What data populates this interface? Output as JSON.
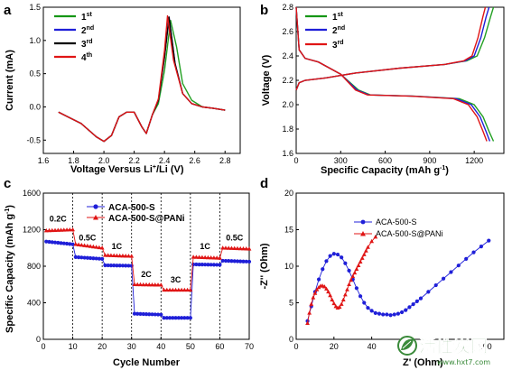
{
  "panels": [
    "a",
    "b",
    "c",
    "d"
  ],
  "colors": {
    "green": "#22a022",
    "blue": "#1f1fd8",
    "black": "#000000",
    "red": "#e01515",
    "legend_green": "#159615"
  },
  "watermark": {
    "brand": "活性炭网",
    "url": "www.hxt7.com",
    "icon": "leaf-logo-icon"
  },
  "chart_data": [
    {
      "panel": "a",
      "type": "line",
      "xlabel": "Voltage Versus Li⁺/Li (V)",
      "ylabel": "Current (mA)",
      "xlim": [
        1.6,
        2.9
      ],
      "ylim": [
        -0.7,
        1.5
      ],
      "xticks": [
        "1.6",
        "1.8",
        "2.0",
        "2.2",
        "2.4",
        "2.6",
        "2.8"
      ],
      "yticks": [
        "-0.5",
        "0.0",
        "0.5",
        "1.0",
        "1.5"
      ],
      "legend": [
        "1st",
        "2nd",
        "3rd",
        "4th"
      ],
      "legend_position": "top-left",
      "series": [
        {
          "name": "1st",
          "color": "#22a022",
          "peak_x": 2.45,
          "x": [
            1.7,
            1.85,
            1.95,
            2.0,
            2.05,
            2.1,
            2.15,
            2.2,
            2.25,
            2.28,
            2.32,
            2.36,
            2.4,
            2.44,
            2.48,
            2.52,
            2.58,
            2.65,
            2.72,
            2.8
          ],
          "y": [
            -0.08,
            -0.25,
            -0.45,
            -0.52,
            -0.43,
            -0.15,
            -0.08,
            -0.08,
            -0.3,
            -0.4,
            -0.12,
            0.05,
            0.55,
            1.3,
            0.9,
            0.35,
            0.1,
            0.0,
            -0.02,
            -0.05
          ]
        },
        {
          "name": "2nd",
          "color": "#1f1fd8",
          "peak_x": 2.43,
          "x": [
            1.7,
            1.85,
            1.95,
            2.0,
            2.05,
            2.1,
            2.15,
            2.2,
            2.25,
            2.28,
            2.32,
            2.36,
            2.4,
            2.43,
            2.47,
            2.52,
            2.58,
            2.65,
            2.72,
            2.8
          ],
          "y": [
            -0.08,
            -0.25,
            -0.45,
            -0.52,
            -0.43,
            -0.15,
            -0.08,
            -0.08,
            -0.3,
            -0.4,
            -0.12,
            0.1,
            0.75,
            1.35,
            0.65,
            0.2,
            0.05,
            0.0,
            -0.02,
            -0.05
          ]
        },
        {
          "name": "3rd",
          "color": "#000000",
          "peak_x": 2.43,
          "x": [
            1.7,
            1.85,
            1.95,
            2.0,
            2.05,
            2.1,
            2.15,
            2.2,
            2.25,
            2.28,
            2.32,
            2.36,
            2.4,
            2.43,
            2.47,
            2.52,
            2.58,
            2.65,
            2.72,
            2.8
          ],
          "y": [
            -0.08,
            -0.25,
            -0.45,
            -0.52,
            -0.43,
            -0.15,
            -0.08,
            -0.08,
            -0.3,
            -0.4,
            -0.12,
            0.1,
            0.75,
            1.35,
            0.65,
            0.2,
            0.05,
            0.0,
            -0.02,
            -0.05
          ]
        },
        {
          "name": "4th",
          "color": "#e01515",
          "peak_x": 2.42,
          "x": [
            1.7,
            1.85,
            1.95,
            2.0,
            2.05,
            2.1,
            2.15,
            2.2,
            2.25,
            2.28,
            2.32,
            2.36,
            2.4,
            2.42,
            2.46,
            2.52,
            2.58,
            2.65,
            2.72,
            2.8
          ],
          "y": [
            -0.08,
            -0.25,
            -0.45,
            -0.52,
            -0.43,
            -0.15,
            -0.08,
            -0.08,
            -0.3,
            -0.4,
            -0.12,
            0.12,
            0.85,
            1.37,
            0.7,
            0.2,
            0.05,
            0.0,
            -0.02,
            -0.05
          ]
        }
      ]
    },
    {
      "panel": "b",
      "type": "line",
      "xlabel": "Specific Capacity (mAh g⁻¹)",
      "ylabel": "Voltage (V)",
      "xlim": [
        0,
        1400
      ],
      "ylim": [
        1.6,
        2.8
      ],
      "xticks": [
        "0",
        "300",
        "600",
        "900",
        "1200"
      ],
      "yticks": [
        "1.6",
        "1.8",
        "2.0",
        "2.2",
        "2.4",
        "2.6",
        "2.8"
      ],
      "legend": [
        "1st",
        "2nd",
        "3rd"
      ],
      "legend_position": "top-left",
      "series": [
        {
          "name": "1st",
          "color": "#22a022",
          "charge": {
            "x": [
              0,
              20,
              60,
              200,
              400,
              700,
              1000,
              1150,
              1220,
              1270,
              1310,
              1330
            ],
            "y": [
              2.12,
              2.18,
              2.2,
              2.22,
              2.26,
              2.3,
              2.33,
              2.36,
              2.4,
              2.55,
              2.72,
              2.8
            ]
          },
          "discharge": {
            "x": [
              0,
              20,
              60,
              150,
              300,
              420,
              500,
              800,
              1100,
              1200,
              1260,
              1300,
              1330
            ],
            "y": [
              2.8,
              2.45,
              2.38,
              2.35,
              2.25,
              2.12,
              2.08,
              2.07,
              2.05,
              2.0,
              1.9,
              1.78,
              1.7
            ]
          }
        },
        {
          "name": "2nd",
          "color": "#1f1fd8",
          "charge": {
            "x": [
              0,
              20,
              60,
              200,
              400,
              700,
              1000,
              1140,
              1200,
              1245,
              1280,
              1300
            ],
            "y": [
              2.12,
              2.18,
              2.2,
              2.22,
              2.26,
              2.3,
              2.33,
              2.36,
              2.4,
              2.55,
              2.72,
              2.8
            ]
          },
          "discharge": {
            "x": [
              0,
              20,
              60,
              150,
              300,
              410,
              490,
              790,
              1080,
              1180,
              1240,
              1280,
              1305
            ],
            "y": [
              2.8,
              2.45,
              2.38,
              2.35,
              2.25,
              2.12,
              2.08,
              2.07,
              2.05,
              2.0,
              1.9,
              1.78,
              1.7
            ]
          }
        },
        {
          "name": "3rd",
          "color": "#e01515",
          "charge": {
            "x": [
              0,
              20,
              60,
              200,
              400,
              700,
              1000,
              1130,
              1185,
              1225,
              1258,
              1275
            ],
            "y": [
              2.12,
              2.18,
              2.2,
              2.22,
              2.26,
              2.3,
              2.33,
              2.36,
              2.4,
              2.55,
              2.72,
              2.8
            ]
          },
          "discharge": {
            "x": [
              0,
              20,
              60,
              150,
              300,
              400,
              480,
              780,
              1060,
              1160,
              1220,
              1260,
              1285
            ],
            "y": [
              2.8,
              2.45,
              2.38,
              2.35,
              2.25,
              2.12,
              2.08,
              2.07,
              2.05,
              2.0,
              1.9,
              1.78,
              1.7
            ]
          }
        }
      ]
    },
    {
      "panel": "c",
      "type": "scatter",
      "xlabel": "Cycle Number",
      "ylabel": "Specific Capacity (mAh g⁻¹)",
      "xlim": [
        0,
        70
      ],
      "ylim": [
        0,
        1600
      ],
      "xticks": [
        "0",
        "10",
        "20",
        "30",
        "40",
        "50",
        "60",
        "70"
      ],
      "yticks": [
        "0",
        "400",
        "800",
        "1200",
        "1600"
      ],
      "dashed_lines_x": [
        10,
        20,
        30,
        40,
        50,
        60
      ],
      "rate_labels": [
        {
          "text": "0.2C",
          "x": 5,
          "y": 1290
        },
        {
          "text": "0.5C",
          "x": 15,
          "y": 1080
        },
        {
          "text": "1C",
          "x": 25,
          "y": 990
        },
        {
          "text": "2C",
          "x": 35,
          "y": 680
        },
        {
          "text": "3C",
          "x": 45,
          "y": 620
        },
        {
          "text": "1C",
          "x": 55,
          "y": 990
        },
        {
          "text": "0.5C",
          "x": 65,
          "y": 1080
        }
      ],
      "legend": [
        "ACA-500-S",
        "ACA-500-S@PANi"
      ],
      "legend_position": "top",
      "series": [
        {
          "name": "ACA-500-S",
          "color": "#1f1fd8",
          "marker": "circle",
          "segments": [
            {
              "from": 1,
              "to": 10,
              "start": 1070,
              "end": 1040
            },
            {
              "from": 11,
              "to": 20,
              "start": 900,
              "end": 880
            },
            {
              "from": 21,
              "to": 30,
              "start": 810,
              "end": 805
            },
            {
              "from": 31,
              "to": 40,
              "start": 280,
              "end": 270
            },
            {
              "from": 41,
              "to": 50,
              "start": 235,
              "end": 235
            },
            {
              "from": 51,
              "to": 60,
              "start": 820,
              "end": 815
            },
            {
              "from": 61,
              "to": 70,
              "start": 860,
              "end": 850
            }
          ]
        },
        {
          "name": "ACA-500-S@PANi",
          "color": "#e01515",
          "marker": "triangle",
          "segments": [
            {
              "from": 1,
              "to": 10,
              "start": 1190,
              "end": 1200
            },
            {
              "from": 11,
              "to": 20,
              "start": 1040,
              "end": 1000
            },
            {
              "from": 21,
              "to": 30,
              "start": 920,
              "end": 910
            },
            {
              "from": 31,
              "to": 40,
              "start": 600,
              "end": 595
            },
            {
              "from": 41,
              "to": 50,
              "start": 540,
              "end": 540
            },
            {
              "from": 51,
              "to": 60,
              "start": 900,
              "end": 890
            },
            {
              "from": 61,
              "to": 70,
              "start": 1000,
              "end": 990
            }
          ]
        }
      ]
    },
    {
      "panel": "d",
      "type": "scatter",
      "xlabel": "Z' (Ohm)",
      "ylabel": "-Z'' (Ohm)",
      "xlim": [
        0,
        110
      ],
      "ylim": [
        0,
        20
      ],
      "xticks": [
        "0",
        "20",
        "40"
      ],
      "xticks_visible_extra": "100",
      "yticks": [
        "0",
        "5",
        "10",
        "15",
        "20"
      ],
      "legend": [
        "ACA-500-S",
        "ACA-500-S@PANi"
      ],
      "legend_position": "top-right",
      "series": [
        {
          "name": "ACA-500-S",
          "color": "#1f1fd8",
          "marker": "circle",
          "x": [
            6,
            8,
            10,
            12,
            14,
            16,
            18,
            20,
            22,
            24,
            26,
            28,
            30,
            32,
            34,
            36,
            38,
            40,
            42,
            44,
            46,
            48,
            50,
            52,
            54,
            56,
            58,
            60,
            62,
            64,
            66,
            70,
            74,
            78,
            82,
            86,
            90,
            94,
            98,
            102
          ],
          "y": [
            2.5,
            4.5,
            6.5,
            8.2,
            9.6,
            10.7,
            11.4,
            11.7,
            11.6,
            11.2,
            10.4,
            9.4,
            8.2,
            7.0,
            5.9,
            5.0,
            4.3,
            3.9,
            3.6,
            3.5,
            3.4,
            3.4,
            3.3,
            3.4,
            3.5,
            3.7,
            4.0,
            4.4,
            4.8,
            5.2,
            5.6,
            6.5,
            7.4,
            8.3,
            9.2,
            10.1,
            11.0,
            11.9,
            12.7,
            13.5
          ]
        },
        {
          "name": "ACA-500-S@PANi",
          "color": "#e01515",
          "marker": "triangle",
          "x": [
            6,
            7,
            8,
            9,
            10,
            11,
            12,
            13,
            14,
            15,
            16,
            17,
            18,
            19,
            20,
            21,
            22,
            23,
            24,
            25,
            26,
            27,
            28,
            29,
            30,
            31,
            32,
            33,
            34,
            35,
            36,
            37,
            38,
            40,
            42
          ],
          "y": [
            2.2,
            3.6,
            4.8,
            5.7,
            6.3,
            6.8,
            7.1,
            7.3,
            7.3,
            7.2,
            6.9,
            6.5,
            6.0,
            5.4,
            4.9,
            4.5,
            4.3,
            4.4,
            4.8,
            5.4,
            6.1,
            6.8,
            7.5,
            8.1,
            8.6,
            9.1,
            9.6,
            10.1,
            10.6,
            11.1,
            11.6,
            12.1,
            12.6,
            13.4,
            14.0
          ]
        }
      ]
    }
  ]
}
